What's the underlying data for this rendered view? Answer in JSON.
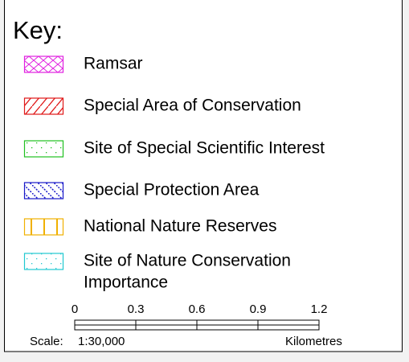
{
  "legend": {
    "title": "Key:",
    "items": [
      {
        "label": "Ramsar",
        "color": "#e020e0"
      },
      {
        "label": "Special Area of Conservation",
        "color": "#e01818"
      },
      {
        "label": "Site of Special Scientific Interest",
        "color": "#20c020"
      },
      {
        "label": "Special Protection Area",
        "color": "#1818c8"
      },
      {
        "label": "National Nature Reserves",
        "color": "#f0b000"
      },
      {
        "label": [
          "Site of Nature Conservation",
          "Importance"
        ],
        "color": "#20c8d0"
      }
    ]
  },
  "scale_bar": {
    "xlim": [
      0,
      1.2
    ],
    "ticks": [
      0,
      0.3,
      0.6,
      0.9,
      1.2
    ],
    "scale_label": "Scale:",
    "ratio": "1:30,000",
    "units": "Kilometres"
  }
}
